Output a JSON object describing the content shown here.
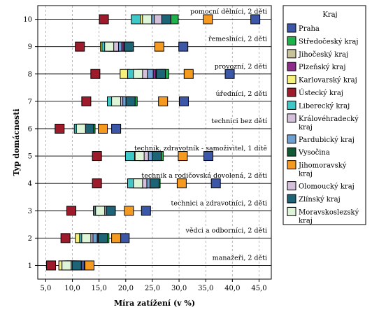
{
  "chart_data": {
    "type": "scatter",
    "xlabel": "Míra zatížení (v %)",
    "ylabel": "Typ domácnosti",
    "xlim": [
      3.5,
      47.3
    ],
    "ylim": [
      0.5,
      10.5
    ],
    "x_ticks": [
      "5,0",
      "10,0",
      "15,0",
      "20,0",
      "25,0",
      "30,0",
      "35,0",
      "40,0",
      "45,0"
    ],
    "y_ticks": [
      "1",
      "2",
      "3",
      "4",
      "5",
      "6",
      "7",
      "8",
      "9",
      "10"
    ],
    "grid": "vertical dashed",
    "legend_title": "Kraj",
    "legend_position": "right",
    "categories": [
      {
        "y": 1,
        "label": "manažeři, 2 děti"
      },
      {
        "y": 2,
        "label": "vědci a odborníci, 2 děti"
      },
      {
        "y": 3,
        "label": "technici a zdravotníci, 2 děti"
      },
      {
        "y": 4,
        "label": "technik a rodičovská dovolená, 2 děti"
      },
      {
        "y": 5,
        "label": "technik, zdravotník - samoživitel, 1 dítě"
      },
      {
        "y": 6,
        "label": "technici bez dětí"
      },
      {
        "y": 7,
        "label": "úředníci, 2 děti"
      },
      {
        "y": 8,
        "label": "provozní, 2 děti"
      },
      {
        "y": 9,
        "label": "řemeslníci, 2 děti"
      },
      {
        "y": 10,
        "label": "pomocní dělníci, 2 děti"
      }
    ],
    "series": [
      {
        "name": "Praha",
        "color": "#3c56a8",
        "values": [
          11.4,
          19.8,
          23.8,
          36.9,
          35.5,
          18.2,
          30.9,
          39.5,
          30.8,
          44.3
        ]
      },
      {
        "name": "Středočeský kraj",
        "color": "#1db34a",
        "values": [
          9.9,
          16.0,
          16.8,
          25.6,
          26.2,
          13.4,
          21.3,
          27.2,
          20.2,
          29.0
        ]
      },
      {
        "name": "Jihočeský kraj",
        "color": "#c8c29a",
        "values": [
          9.7,
          13.5,
          15.7,
          23.5,
          23.5,
          11.9,
          18.9,
          22.9,
          17.9,
          25.5
        ]
      },
      {
        "name": "Plzeňský kraj",
        "color": "#8e2c8a",
        "values": [
          10.1,
          14.6,
          16.4,
          24.6,
          24.8,
          12.6,
          20.0,
          24.8,
          18.8,
          27.0
        ]
      },
      {
        "name": "Karlovarský kraj",
        "color": "#f7f07a",
        "values": [
          8.3,
          11.4,
          14.8,
          21.5,
          22.0,
          11.3,
          18.0,
          19.8,
          16.1,
          22.6
        ]
      },
      {
        "name": "Ústecký kraj",
        "color": "#9e1b2c",
        "values": [
          6.0,
          8.7,
          9.8,
          14.6,
          14.6,
          7.6,
          12.6,
          14.3,
          11.4,
          15.9
        ]
      },
      {
        "name": "Liberecký kraj",
        "color": "#3fc8c8",
        "values": [
          8.9,
          12.2,
          14.9,
          21.2,
          20.8,
          11.2,
          17.4,
          21.2,
          16.4,
          21.9
        ]
      },
      {
        "name": "Královéhradecký kraj",
        "color": "#d4c0da",
        "values": [
          9.4,
          13.0,
          15.5,
          23.1,
          23.4,
          11.9,
          18.6,
          23.2,
          17.8,
          26.2
        ]
      },
      {
        "name": "Pardubický kraj",
        "color": "#6fa0d3",
        "values": [
          10.5,
          14.1,
          15.9,
          23.9,
          24.1,
          12.2,
          19.6,
          24.3,
          18.4,
          24.6
        ]
      },
      {
        "name": "Vysočina",
        "color": "#125a34",
        "values": [
          10.8,
          15.5,
          17.2,
          25.4,
          25.8,
          13.1,
          20.9,
          26.6,
          20.6,
          27.6
        ]
      },
      {
        "name": "Jihomoravský kraj",
        "color": "#f49a20",
        "values": [
          13.2,
          18.2,
          20.6,
          30.5,
          30.7,
          15.7,
          27.0,
          31.8,
          26.3,
          35.4
        ]
      },
      {
        "name": "Olomoucký kraj",
        "color": "#d4c0da",
        "values": [
          9.4,
          13.0,
          15.5,
          23.1,
          23.4,
          11.9,
          18.6,
          23.2,
          17.8,
          26.2
        ]
      },
      {
        "name": "Zlínský kraj",
        "color": "#1d6576",
        "values": [
          10.8,
          15.7,
          17.2,
          25.4,
          25.8,
          13.1,
          20.9,
          26.6,
          20.6,
          27.6
        ]
      },
      {
        "name": "Moravskoslezský kraj",
        "color": "#dff5d8",
        "values": [
          8.9,
          12.6,
          15.2,
          22.3,
          22.6,
          11.6,
          18.2,
          22.3,
          16.9,
          24.0
        ]
      }
    ],
    "legend_lines": [
      [
        "Praha"
      ],
      [
        "Středočeský kraj"
      ],
      [
        "Jihočeský kraj"
      ],
      [
        "Plzeňský kraj"
      ],
      [
        "Karlovarský kraj"
      ],
      [
        "Ústecký kraj"
      ],
      [
        "Liberecký kraj"
      ],
      [
        "Královéhradecký",
        "kraj"
      ],
      [
        "Pardubický kraj"
      ],
      [
        "Vysočina"
      ],
      [
        "Jihomoravský",
        "kraj"
      ],
      [
        "Olomoucký kraj"
      ],
      [
        "Zlínský kraj"
      ],
      [
        "Moravskoslezský",
        "kraj"
      ]
    ]
  }
}
